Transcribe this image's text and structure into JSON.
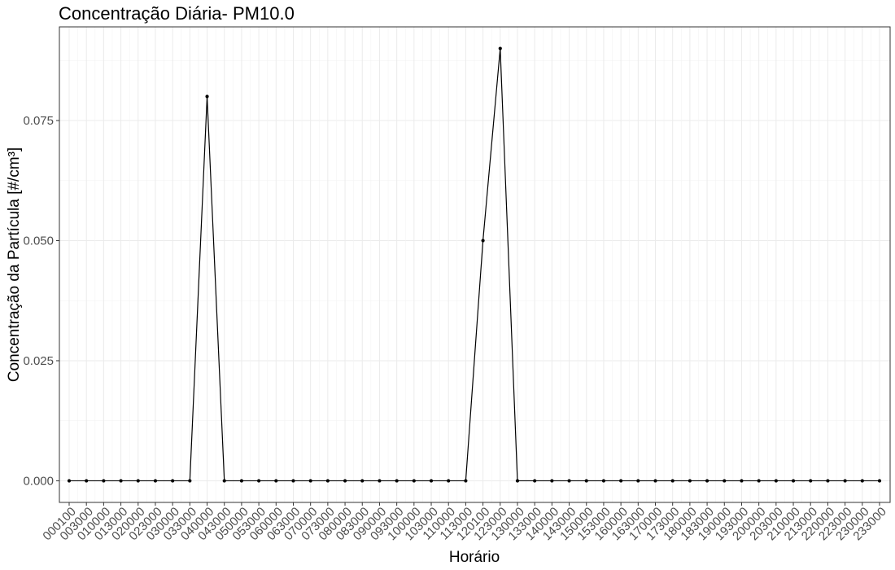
{
  "chart_data": {
    "type": "line",
    "title": "Concentração Diária- PM10.0",
    "xlabel": "Horário",
    "ylabel": "Concentração da Partícula [#/cm³]",
    "ylim": [
      -0.0045,
      0.0945
    ],
    "y_ticks": [
      0,
      0.025,
      0.05,
      0.075
    ],
    "y_tick_labels": [
      "0.000",
      "0.025",
      "0.050",
      "0.075"
    ],
    "grid": true,
    "legend": "none",
    "categories": [
      "000100",
      "003000",
      "010000",
      "013000",
      "020000",
      "023000",
      "030000",
      "033000",
      "040000",
      "043000",
      "050000",
      "053000",
      "060000",
      "063000",
      "070000",
      "073000",
      "080000",
      "083000",
      "090000",
      "093000",
      "100000",
      "103000",
      "110000",
      "113000",
      "120100",
      "123000",
      "130000",
      "133000",
      "140000",
      "143000",
      "150000",
      "153000",
      "160000",
      "163000",
      "170000",
      "173000",
      "180000",
      "183000",
      "190000",
      "193000",
      "200000",
      "203000",
      "210000",
      "213000",
      "220000",
      "223000",
      "230000",
      "233000"
    ],
    "series": [
      {
        "values": [
          0,
          0,
          0,
          0,
          0,
          0,
          0,
          0,
          0.08,
          0,
          0,
          0,
          0,
          0,
          0,
          0,
          0,
          0,
          0,
          0,
          0,
          0,
          0,
          0,
          0.05,
          0.09,
          0,
          0,
          0,
          0,
          0,
          0,
          0,
          0,
          0,
          0,
          0,
          0,
          0,
          0,
          0,
          0,
          0,
          0,
          0,
          0,
          0,
          0
        ],
        "color": "#000000"
      }
    ]
  }
}
